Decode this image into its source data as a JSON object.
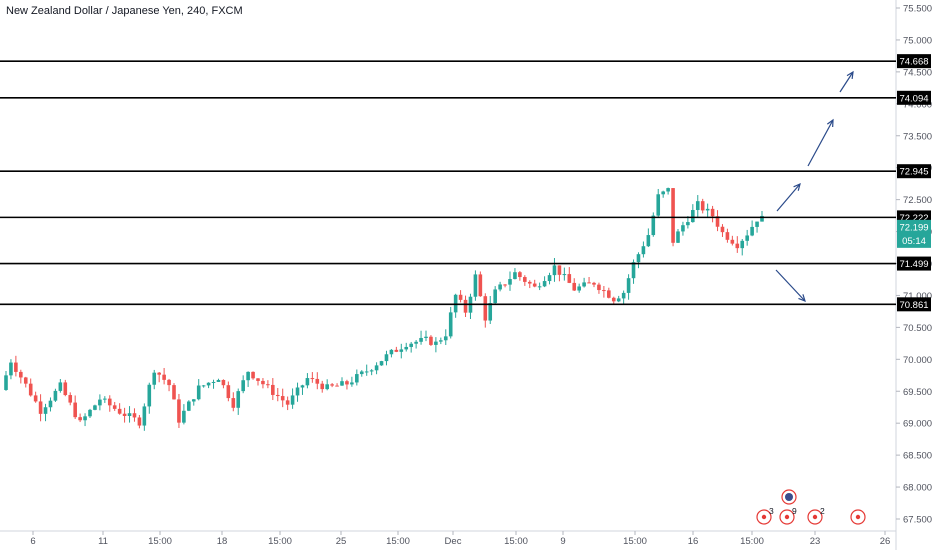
{
  "title": "New Zealand Dollar / Japanese Yen, 240, FXCM",
  "colors": {
    "up": "#26a69a",
    "down": "#ef5350",
    "level_line": "#000000",
    "arrow": "#2a4a8a",
    "last_price": "#26a69a",
    "event_marker": "#e53935",
    "axis_text": "#50535e",
    "grid": "#f0f3fa"
  },
  "chart_data": {
    "type": "candlestick",
    "y_axis": {
      "ticks": [
        "75.500",
        "75.000",
        "74.500",
        "74.000",
        "73.500",
        "73.000",
        "72.500",
        "72.000",
        "71.500",
        "71.000",
        "70.500",
        "70.000",
        "69.500",
        "69.000",
        "68.500",
        "68.000",
        "67.500"
      ],
      "range": [
        67.44,
        75.62
      ]
    },
    "x_axis": {
      "ticks": [
        "6",
        "11",
        "15:00",
        "18",
        "15:00",
        "25",
        "15:00",
        "Dec",
        "15:00",
        "9",
        "15:00",
        "16",
        "15:00",
        "23",
        "26"
      ]
    },
    "levels": [
      {
        "value": 74.668,
        "label": "74.668"
      },
      {
        "value": 74.094,
        "label": "74.094"
      },
      {
        "value": 72.945,
        "label": "72.945"
      },
      {
        "value": 72.222,
        "label": "72.222"
      },
      {
        "value": 71.499,
        "label": "71.499"
      },
      {
        "value": 70.861,
        "label": "70.861"
      }
    ],
    "last_price": {
      "value": 72.199,
      "label": "72.199",
      "countdown": "05:14"
    },
    "arrows": [
      {
        "from": [
          72.24,
          0.833
        ],
        "to": [
          72.89,
          0.857
        ],
        "dir": "up"
      },
      {
        "from": [
          72.97,
          0.868
        ],
        "to": [
          73.76,
          0.894
        ],
        "dir": "up"
      },
      {
        "from": [
          74.23,
          0.902
        ],
        "to": [
          74.54,
          0.916
        ],
        "dir": "up"
      },
      {
        "from": [
          71.36,
          0.832
        ],
        "to": [
          70.96,
          0.864
        ],
        "dir": "down"
      }
    ],
    "event_markers": [
      {
        "label": "3"
      },
      {
        "label": "9"
      },
      {
        "label": "2"
      },
      {
        "label": ""
      }
    ],
    "candles_anchors": [
      [
        0,
        69.52
      ],
      [
        2,
        69.98
      ],
      [
        5,
        69.6
      ],
      [
        8,
        69.2
      ],
      [
        12,
        69.58
      ],
      [
        16,
        69.0
      ],
      [
        20,
        69.38
      ],
      [
        24,
        69.18
      ],
      [
        28,
        69.02
      ],
      [
        31,
        69.85
      ],
      [
        34,
        69.6
      ],
      [
        36,
        69.05
      ],
      [
        40,
        69.55
      ],
      [
        44,
        69.72
      ],
      [
        47,
        69.3
      ],
      [
        50,
        69.82
      ],
      [
        54,
        69.55
      ],
      [
        58,
        69.3
      ],
      [
        62,
        69.7
      ],
      [
        66,
        69.55
      ],
      [
        70,
        69.62
      ],
      [
        74,
        69.82
      ],
      [
        78,
        70.05
      ],
      [
        82,
        70.25
      ],
      [
        86,
        70.3
      ],
      [
        88,
        70.25
      ],
      [
        90,
        70.4
      ],
      [
        92,
        71.0
      ],
      [
        94,
        70.75
      ],
      [
        96,
        71.3
      ],
      [
        98,
        70.65
      ],
      [
        100,
        71.05
      ],
      [
        104,
        71.35
      ],
      [
        108,
        71.12
      ],
      [
        112,
        71.45
      ],
      [
        116,
        71.1
      ],
      [
        120,
        71.2
      ],
      [
        124,
        70.95
      ],
      [
        126,
        71.05
      ],
      [
        128,
        71.5
      ],
      [
        131,
        71.95
      ],
      [
        133,
        72.55
      ],
      [
        135,
        72.65
      ],
      [
        136,
        71.85
      ],
      [
        138,
        72.1
      ],
      [
        141,
        72.42
      ],
      [
        144,
        72.25
      ],
      [
        146,
        71.98
      ],
      [
        149,
        71.8
      ],
      [
        151,
        71.97
      ],
      [
        153,
        72.2
      ]
    ],
    "candle_count": 154
  }
}
